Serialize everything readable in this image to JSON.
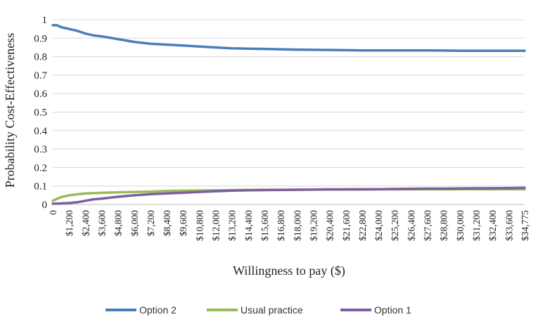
{
  "chart_data": {
    "type": "line",
    "title": "",
    "xlabel": "Willingness to pay ($)",
    "ylabel": "Probability Cost-Effectiveness",
    "xlim": [
      0,
      34775
    ],
    "ylim": [
      0,
      1
    ],
    "y_ticks": [
      "0",
      "0.1",
      "0.2",
      "0.3",
      "0.4",
      "0.5",
      "0.6",
      "0.7",
      "0.8",
      "0.9",
      "1"
    ],
    "x_tick_values": [
      0,
      1200,
      2400,
      3600,
      4800,
      6000,
      7200,
      8400,
      9600,
      10800,
      12000,
      13200,
      14400,
      15600,
      16800,
      18000,
      19200,
      20400,
      21600,
      22800,
      24000,
      25200,
      26400,
      27600,
      28800,
      30000,
      31200,
      32400,
      33600,
      34775
    ],
    "x_tick_labels": [
      "0",
      "$1,200",
      "$2,400",
      "$3,600",
      "$4,800",
      "$6,000",
      "$7,200",
      "$8,400",
      "$9,600",
      "$10,800",
      "$12,000",
      "$13,200",
      "$14,400",
      "$15,600",
      "$16,800",
      "$18,000",
      "$19,200",
      "$20,400",
      "$21,600",
      "$22,800",
      "$24,000",
      "$25,200",
      "$26,400",
      "$27,600",
      "$28,800",
      "$30,000",
      "$31,200",
      "$32,400",
      "$33,600",
      "$34,775"
    ],
    "grid": "horizontal",
    "legend_position": "bottom",
    "series": [
      {
        "name": "Option 2",
        "color": "#4a7ebb",
        "x": [
          0,
          300,
          600,
          1200,
          1800,
          2400,
          3000,
          3600,
          4800,
          6000,
          7200,
          8400,
          9600,
          10800,
          12000,
          13200,
          14400,
          15600,
          16800,
          18000,
          19200,
          20400,
          21600,
          22800,
          24000,
          25200,
          26400,
          27600,
          28800,
          30000,
          31200,
          32400,
          33600,
          34775
        ],
        "y": [
          0.97,
          0.97,
          0.96,
          0.95,
          0.94,
          0.925,
          0.915,
          0.91,
          0.895,
          0.88,
          0.87,
          0.865,
          0.86,
          0.855,
          0.85,
          0.845,
          0.843,
          0.842,
          0.84,
          0.838,
          0.837,
          0.836,
          0.835,
          0.834,
          0.834,
          0.834,
          0.834,
          0.834,
          0.833,
          0.832,
          0.832,
          0.832,
          0.832,
          0.832
        ]
      },
      {
        "name": "Usual practice",
        "color": "#9bbb59",
        "x": [
          0,
          300,
          600,
          1200,
          1800,
          2400,
          3600,
          4800,
          6000,
          7200,
          8400,
          9600,
          10800,
          12000,
          13200,
          14400,
          15600,
          16800,
          18000,
          19200,
          20400,
          21600,
          22800,
          24000,
          25200,
          26400,
          27600,
          28800,
          30000,
          31200,
          32400,
          33600,
          34775
        ],
        "y": [
          0.02,
          0.03,
          0.04,
          0.05,
          0.055,
          0.06,
          0.063,
          0.066,
          0.068,
          0.07,
          0.073,
          0.075,
          0.076,
          0.077,
          0.078,
          0.079,
          0.08,
          0.08,
          0.08,
          0.081,
          0.081,
          0.081,
          0.081,
          0.082,
          0.082,
          0.082,
          0.082,
          0.082,
          0.083,
          0.083,
          0.083,
          0.083,
          0.083
        ]
      },
      {
        "name": "Option 1",
        "color": "#7d5fa0",
        "x": [
          0,
          300,
          600,
          1200,
          1800,
          2400,
          3000,
          3600,
          4800,
          6000,
          7200,
          8400,
          9600,
          10800,
          12000,
          13200,
          14400,
          15600,
          16800,
          18000,
          19200,
          20400,
          21600,
          22800,
          24000,
          25200,
          26400,
          27600,
          28800,
          30000,
          31200,
          32400,
          33600,
          34775
        ],
        "y": [
          0.005,
          0.005,
          0.006,
          0.008,
          0.012,
          0.02,
          0.028,
          0.032,
          0.042,
          0.05,
          0.056,
          0.06,
          0.064,
          0.068,
          0.072,
          0.075,
          0.077,
          0.078,
          0.079,
          0.08,
          0.081,
          0.082,
          0.082,
          0.083,
          0.083,
          0.084,
          0.085,
          0.086,
          0.086,
          0.087,
          0.088,
          0.088,
          0.089,
          0.09
        ]
      }
    ]
  }
}
